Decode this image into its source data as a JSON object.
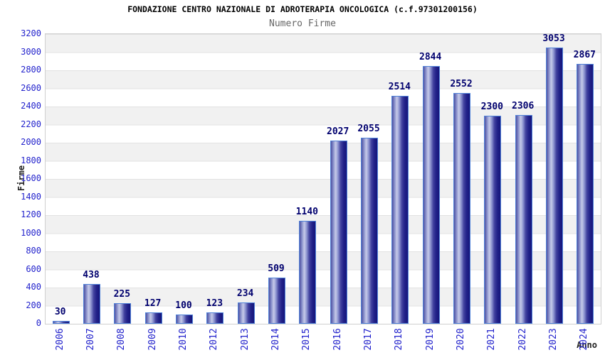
{
  "header": {
    "title": "FONDAZIONE CENTRO NAZIONALE DI ADROTERAPIA ONCOLOGICA (c.f.97301200156)",
    "subtitle": "Numero Firme"
  },
  "chart_data": {
    "type": "bar",
    "title": "Numero Firme",
    "categories": [
      "2006",
      "2007",
      "2008",
      "2009",
      "2010",
      "2012",
      "2013",
      "2014",
      "2015",
      "2016",
      "2017",
      "2018",
      "2019",
      "2020",
      "2021",
      "2022",
      "2023",
      "2024"
    ],
    "values": [
      30,
      438,
      225,
      127,
      100,
      123,
      234,
      509,
      1140,
      2027,
      2055,
      2514,
      2844,
      2552,
      2300,
      2306,
      3053,
      2867
    ],
    "xlabel": "Anno",
    "ylabel": "Firme",
    "ylim": [
      0,
      3200
    ],
    "y_tick_step": 200,
    "grid": "horizontal-bands-alternating",
    "legend": "none",
    "bar_value_labels": true,
    "colors": {
      "tick_label": "#2222cc",
      "bar_value_label": "#00006e",
      "bar_border": "#4f81d8",
      "bar_fill_dark": "#15157b",
      "bar_fill_light": "#c7cbe9",
      "band_gray": "#f1f1f1",
      "band_white": "#ffffff",
      "gridline": "#e2e2e2",
      "title": "#000000",
      "subtitle": "#666666",
      "axis_title": "#222222"
    }
  }
}
